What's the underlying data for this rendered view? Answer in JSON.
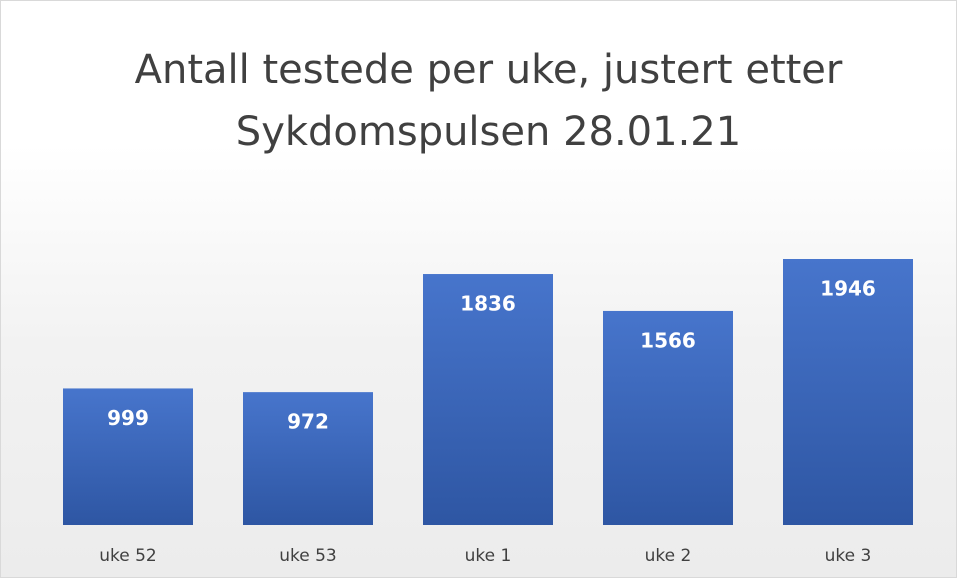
{
  "chart_data": {
    "type": "bar",
    "title": "Antall testede per uke, justert etter Sykdomspulsen 28.01.21",
    "categories": [
      "uke 52",
      "uke 53",
      "uke 1",
      "uke 2",
      "uke 3"
    ],
    "values": [
      999,
      972,
      1836,
      1566,
      1946
    ],
    "color": "#4472c4"
  }
}
